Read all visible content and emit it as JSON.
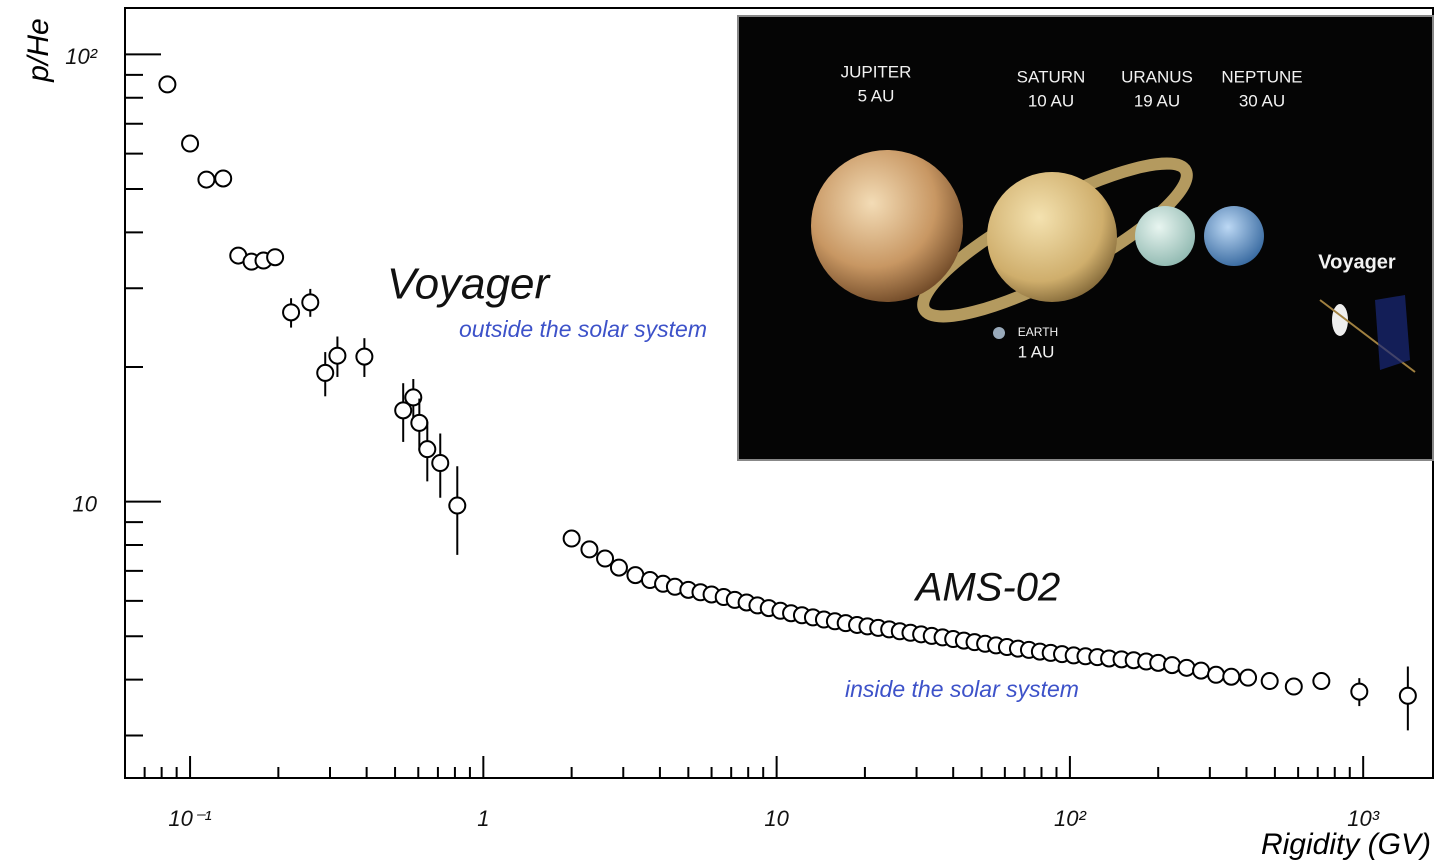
{
  "chart_data": {
    "type": "scatter",
    "xlabel": "Rigidity (GV)",
    "ylabel": "p/He",
    "xscale": "log",
    "yscale": "log",
    "xlim": [
      0.06,
      1730
    ],
    "ylim": [
      2.41,
      127
    ],
    "xticks": [
      {
        "value": 0.1,
        "label": "10⁻¹"
      },
      1,
      10,
      {
        "value": 100,
        "label": "10²"
      },
      {
        "value": 1000,
        "label": "10³"
      }
    ],
    "yticks": [
      10,
      {
        "value": 100,
        "label": "10²"
      }
    ],
    "xminorticks": [
      0.07,
      0.08,
      0.09,
      0.2,
      0.3,
      0.4,
      0.5,
      0.6,
      0.7,
      0.8,
      0.9,
      2,
      3,
      4,
      5,
      6,
      7,
      8,
      9,
      20,
      30,
      40,
      50,
      60,
      70,
      80,
      90,
      200,
      300,
      400,
      500,
      600,
      700,
      800,
      900
    ],
    "yminorticks": [
      3,
      4,
      5,
      6,
      7,
      8,
      9,
      20,
      30,
      40,
      50,
      60,
      70,
      80,
      90
    ],
    "series": [
      {
        "name": "Voyager",
        "color": "#000000",
        "x": [
          0.0837,
          0.1,
          0.1137,
          0.1297,
          0.146,
          0.162,
          0.178,
          0.195,
          0.221,
          0.257,
          0.289,
          0.318,
          0.393,
          0.533,
          0.577,
          0.605,
          0.644,
          0.713,
          0.815
        ],
        "values": [
          85.7,
          63.2,
          52.5,
          52.8,
          35.5,
          34.4,
          34.6,
          35.2,
          26.5,
          27.9,
          19.4,
          21.2,
          21.1,
          16.0,
          17.1,
          15.0,
          13.1,
          12.2,
          9.8
        ],
        "errors": [
          0,
          0,
          0,
          0,
          1,
          1,
          1,
          1,
          2,
          2,
          2.2,
          2.2,
          2.1,
          2.4,
          1.7,
          2,
          2,
          2,
          2.2
        ]
      },
      {
        "name": "AMS-02",
        "color": "#000000",
        "x": [
          2.0,
          2.3,
          2.6,
          2.9,
          3.3,
          3.7,
          4.1,
          4.5,
          5.0,
          5.5,
          6.0,
          6.6,
          7.2,
          7.9,
          8.6,
          9.4,
          10.3,
          11.2,
          12.2,
          13.3,
          14.5,
          15.8,
          17.2,
          18.8,
          20.4,
          22.2,
          24.2,
          26.3,
          28.6,
          31.1,
          33.8,
          36.8,
          40.0,
          43.5,
          47.3,
          51.4,
          56.0,
          61.0,
          66.5,
          72.5,
          79,
          86,
          94,
          103,
          113,
          124,
          136,
          150,
          165,
          182,
          200,
          223,
          250,
          280,
          315,
          355,
          405,
          480,
          580,
          720,
          970,
          1420
        ],
        "values": [
          8.27,
          7.82,
          7.46,
          7.12,
          6.85,
          6.68,
          6.55,
          6.45,
          6.35,
          6.27,
          6.2,
          6.12,
          6.03,
          5.95,
          5.86,
          5.78,
          5.7,
          5.63,
          5.57,
          5.51,
          5.45,
          5.4,
          5.35,
          5.3,
          5.26,
          5.22,
          5.18,
          5.13,
          5.09,
          5.05,
          5.01,
          4.97,
          4.93,
          4.89,
          4.85,
          4.81,
          4.77,
          4.73,
          4.69,
          4.66,
          4.62,
          4.59,
          4.56,
          4.53,
          4.51,
          4.49,
          4.46,
          4.44,
          4.42,
          4.39,
          4.36,
          4.31,
          4.25,
          4.19,
          4.1,
          4.06,
          4.04,
          3.97,
          3.86,
          3.97,
          3.76,
          3.68
        ],
        "errors": [
          0,
          0,
          0,
          0,
          0,
          0,
          0,
          0,
          0,
          0,
          0,
          0,
          0,
          0,
          0,
          0,
          0,
          0,
          0,
          0,
          0,
          0,
          0,
          0,
          0,
          0,
          0,
          0,
          0,
          0,
          0,
          0,
          0,
          0,
          0,
          0,
          0,
          0,
          0,
          0,
          0,
          0,
          0,
          0,
          0,
          0,
          0,
          0,
          0,
          0,
          0,
          0,
          0,
          0,
          0,
          0,
          0,
          0,
          0,
          0,
          0.27,
          0.6
        ]
      }
    ],
    "annotations": [
      "outside the solar system",
      "inside the solar system"
    ],
    "inset": {
      "labels": [
        "JUPITER",
        "5 AU",
        "SATURN",
        "10 AU",
        "URANUS",
        "19 AU",
        "NEPTUNE",
        "30 AU",
        "EARTH",
        "1 AU",
        "Voyager"
      ]
    }
  }
}
